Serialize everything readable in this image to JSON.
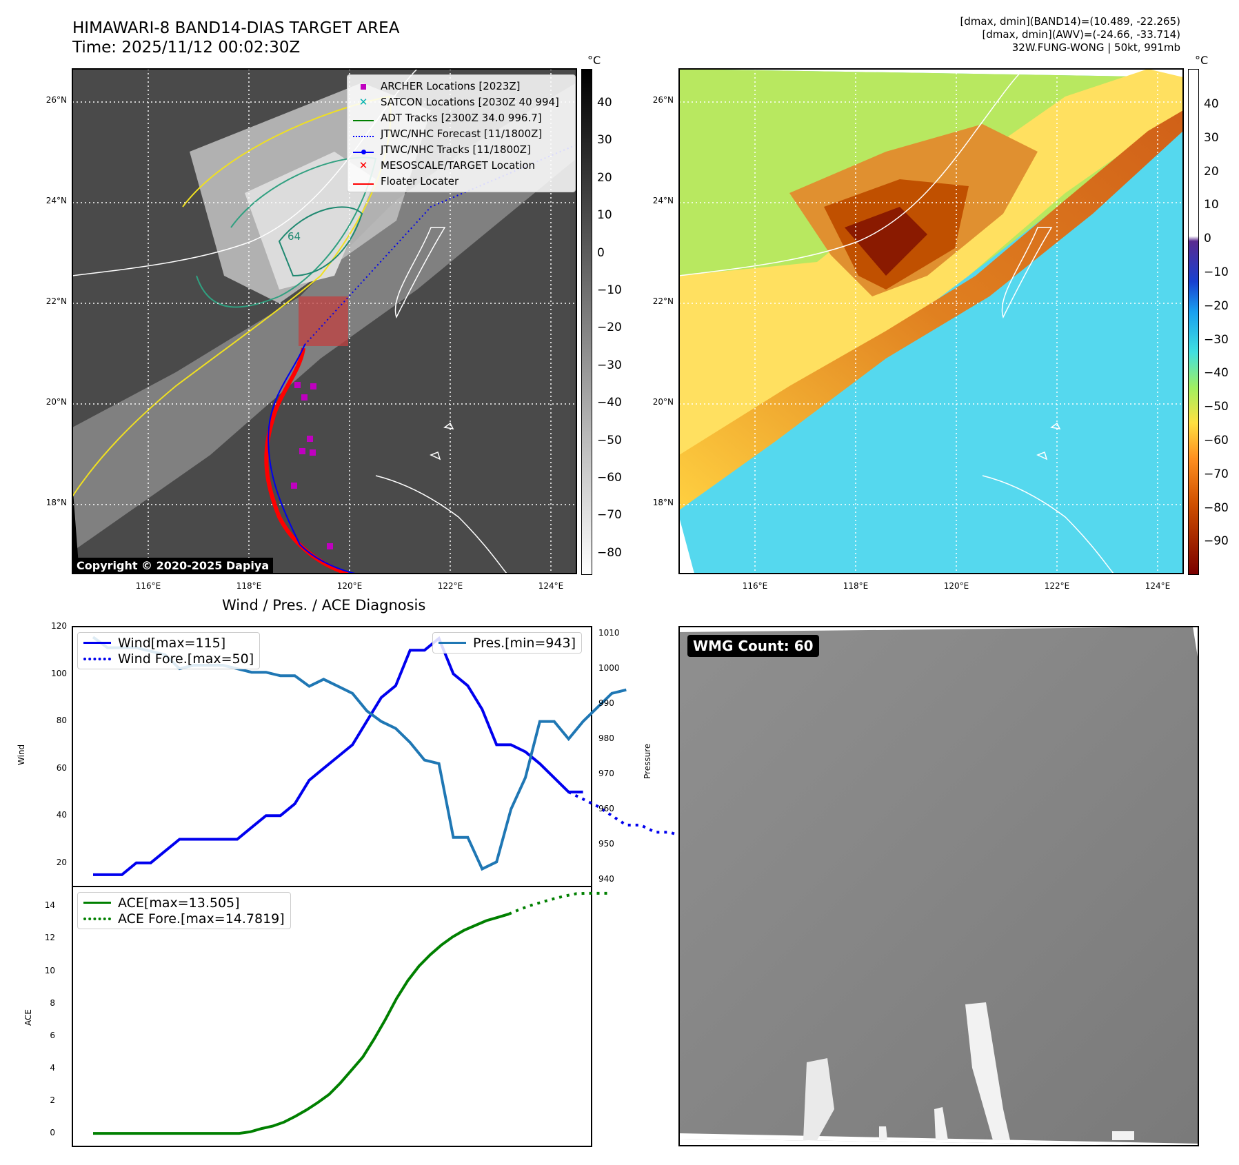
{
  "header": {
    "title_line1": "HIMAWARI-8 BAND14-DIAS TARGET AREA",
    "title_line2": "Time: 2025/11/12 00:02:30Z",
    "info_line1": "[dmax, dmin](BAND14)=(10.489, -22.265)",
    "info_line2": "[dmax, dmin](AWV)=(-24.66, -33.714)",
    "info_line3": "32W.FUNG-WONG | 50kt, 991mb"
  },
  "map": {
    "lat_labels": [
      "26°N",
      "24°N",
      "22°N",
      "20°N",
      "18°N"
    ],
    "lon_labels": [
      "116°E",
      "118°E",
      "120°E",
      "122°E",
      "124°E"
    ],
    "copyright": "Copyright © 2020-2025 Dapiya",
    "contour_label": "64",
    "legend": [
      {
        "label": "ARCHER Locations [2023Z]",
        "color": "#c000c0",
        "marker": "square"
      },
      {
        "label": "SATCON Locations [2030Z 40 994]",
        "color": "#00b0b0",
        "marker": "x"
      },
      {
        "label": "ADT Tracks [2300Z 34.0 996.7]",
        "color": "#008000",
        "marker": "line"
      },
      {
        "label": "JTWC/NHC Forecast [11/1800Z]",
        "color": "#0000ff",
        "marker": "dotted"
      },
      {
        "label": "JTWC/NHC Tracks [11/1800Z]",
        "color": "#0000ff",
        "marker": "line-dot"
      },
      {
        "label": "MESOSCALE/TARGET Location",
        "color": "#ff0000",
        "marker": "x"
      },
      {
        "label": "Floater Locater",
        "color": "#ff0000",
        "marker": "line"
      }
    ]
  },
  "colorbar_gray": {
    "unit": "°C",
    "ticks": [
      "40",
      "30",
      "20",
      "10",
      "0",
      "−10",
      "−20",
      "−30",
      "−40",
      "−50",
      "−60",
      "−70",
      "−80"
    ]
  },
  "colorbar_color": {
    "unit": "°C",
    "ticks": [
      "40",
      "30",
      "20",
      "10",
      "0",
      "−10",
      "−20",
      "−30",
      "−40",
      "−50",
      "−60",
      "−70",
      "−80",
      "−90"
    ]
  },
  "wmg": {
    "label": "WMG Count: 60"
  },
  "chart_data": [
    {
      "type": "line",
      "title": "Wind / Pres. / ACE Diagnosis",
      "ylabel": "Wind",
      "ylabel_right": "Pressure",
      "ylim": [
        10,
        120
      ],
      "ylim_right": [
        938,
        1012
      ],
      "yticks": [
        "120",
        "100",
        "80",
        "60",
        "40",
        "20"
      ],
      "yticks_right": [
        "1010",
        "1000",
        "990",
        "980",
        "970",
        "960",
        "950",
        "940"
      ],
      "series": [
        {
          "name": "Wind[max=115]",
          "axis": "left",
          "style": "solid",
          "color": "#0000ee",
          "values": [
            15,
            15,
            15,
            20,
            20,
            25,
            30,
            30,
            30,
            30,
            30,
            35,
            40,
            40,
            45,
            55,
            60,
            65,
            70,
            80,
            90,
            95,
            110,
            110,
            115,
            100,
            95,
            85,
            70,
            70,
            67,
            62,
            56,
            50,
            50
          ]
        },
        {
          "name": "Wind Fore.[max=50]",
          "axis": "left",
          "style": "dotted",
          "color": "#0000ee",
          "x_start": 33,
          "values": [
            50,
            47,
            44,
            40,
            36,
            36,
            33,
            33,
            31
          ]
        },
        {
          "name": "Pres.[min=943]",
          "axis": "right",
          "style": "solid",
          "color": "#1f77b4",
          "values": [
            1009,
            1006,
            1006,
            1006,
            1005,
            1004,
            1000,
            1001,
            1001,
            1001,
            1000,
            999,
            999,
            998,
            998,
            995,
            997,
            995,
            993,
            988,
            985,
            983,
            979,
            974,
            973,
            952,
            952,
            943,
            945,
            960,
            969,
            985,
            985,
            980,
            985,
            989,
            993,
            994
          ]
        }
      ],
      "legend": {
        "wind": "Wind[max=115]",
        "wind_fore": "Wind Fore.[max=50]",
        "pres": "Pres.[min=943]"
      }
    },
    {
      "type": "line",
      "ylabel": "ACE",
      "ylim": [
        -0.8,
        15.2
      ],
      "yticks": [
        "14",
        "12",
        "10",
        "8",
        "6",
        "4",
        "2",
        "0"
      ],
      "series": [
        {
          "name": "ACE[max=13.505]",
          "style": "solid",
          "color": "#008000",
          "values": [
            0,
            0,
            0,
            0,
            0,
            0,
            0,
            0,
            0,
            0,
            0,
            0,
            0,
            0,
            0.1,
            0.3,
            0.45,
            0.7,
            1.05,
            1.45,
            1.9,
            2.4,
            3.1,
            3.9,
            4.7,
            5.8,
            7.0,
            8.3,
            9.4,
            10.3,
            11.0,
            11.6,
            12.1,
            12.5,
            12.8,
            13.1,
            13.3,
            13.505
          ]
        },
        {
          "name": "ACE Fore.[max=14.7819]",
          "style": "dotted",
          "color": "#008000",
          "x_start": 37,
          "values": [
            13.505,
            13.8,
            14.05,
            14.25,
            14.45,
            14.62,
            14.76,
            14.78,
            14.78,
            14.78
          ]
        }
      ],
      "legend": {
        "ace": "ACE[max=13.505]",
        "ace_fore": "ACE Fore.[max=14.7819]"
      }
    }
  ]
}
